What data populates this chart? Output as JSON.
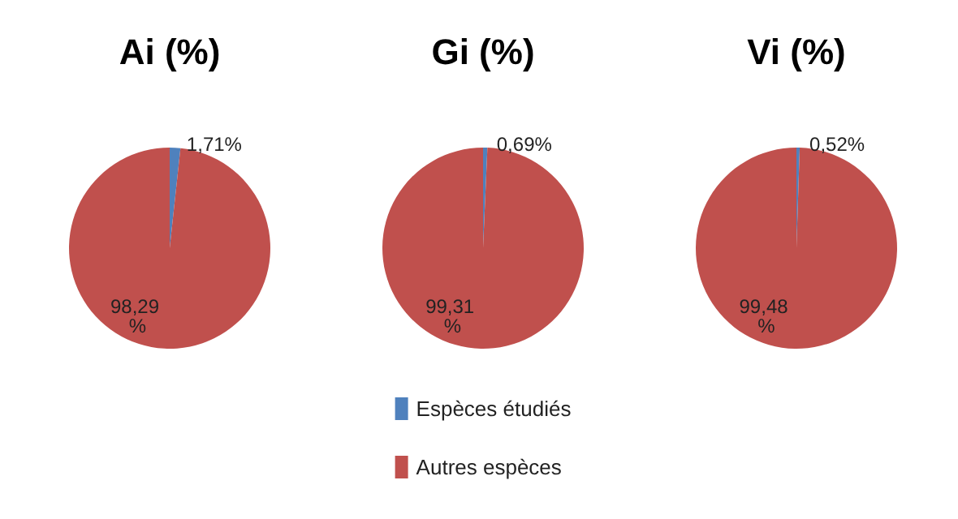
{
  "chart_data": [
    {
      "type": "pie",
      "title": "Ai (%)",
      "categories": [
        null,
        null
      ],
      "values": [
        1.71,
        98.29
      ],
      "colors": [
        "#4f81bd",
        "#c0504d"
      ],
      "value_labels": [
        "1,71%",
        "98,29 %"
      ],
      "legend": false
    },
    {
      "type": "pie",
      "title": "Gi (%)",
      "categories": [
        "Espèces étudiés",
        "Autres espèces"
      ],
      "values": [
        0.69,
        99.31
      ],
      "colors": [
        "#4f81bd",
        "#c0504d"
      ],
      "value_labels": [
        "0,69%",
        "99,31 %"
      ],
      "legend": "bottom"
    },
    {
      "type": "pie",
      "title": "Vi (%)",
      "categories": [
        null,
        null
      ],
      "values": [
        0.52,
        99.48
      ],
      "colors": [
        "#4f81bd",
        "#c0504d"
      ],
      "value_labels": [
        "0,52%",
        "99,48 %"
      ],
      "legend": false
    }
  ]
}
